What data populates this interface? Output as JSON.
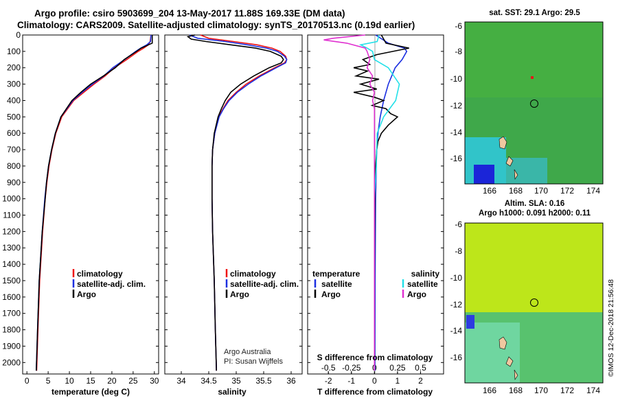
{
  "header": {
    "line1": "Argo profile: csiro 5903699_204 13-May-2017 11.88S 169.33E (DM data)",
    "line2": "Climatology: CARS2009. Satellite-adjusted climatology: synTS_20170513.nc (0.19d earlier)"
  },
  "colors": {
    "climatology": "#ee1111",
    "satellite": "#1a2ee0",
    "argo": "#000000",
    "sat_s": "#22e0e8",
    "argo_s": "#e030d0"
  },
  "legend1": {
    "clim": "climatology",
    "sat": "satellite-adj. clim.",
    "argo": "Argo"
  },
  "legend3": {
    "temp_head": "temperature",
    "sal_head": "salinity",
    "sat": "satellite",
    "argo": "Argo"
  },
  "credits": {
    "line1": "Argo Australia",
    "line2": "PI: Susan Wijffels"
  },
  "maps": {
    "sst_title": "sat. SST: 29.1 Argo: 29.5",
    "sla_title1": "Altim. SLA: 0.16",
    "sla_title2": "Argo h1000: 0.091 h2000: 0.11",
    "lat_ticks": [
      "-6",
      "-8",
      "-10",
      "-12",
      "-14",
      "-16"
    ],
    "lon_ticks": [
      "166",
      "168",
      "170",
      "172",
      "174"
    ]
  },
  "watermark": "©IMOS 12-Dec-2018 21:56:48",
  "chart_data": [
    {
      "type": "line",
      "title": "",
      "xlabel": "temperature (deg C)",
      "ylabel": "",
      "xlim": [
        -1,
        31
      ],
      "ylim": [
        2070,
        0
      ],
      "xticks": [
        "0",
        "5",
        "10",
        "15",
        "20",
        "25",
        "30"
      ],
      "yticks": [
        "0",
        "100",
        "200",
        "300",
        "400",
        "500",
        "600",
        "700",
        "800",
        "900",
        "1000",
        "1100",
        "1200",
        "1300",
        "1400",
        "1500",
        "1600",
        "1700",
        "1800",
        "1900",
        "2000"
      ],
      "series": [
        {
          "name": "climatology",
          "depth": [
            0,
            40,
            60,
            80,
            100,
            150,
            200,
            250,
            300,
            350,
            400,
            450,
            500,
            600,
            700,
            800,
            900,
            1000,
            1200,
            1500,
            1800,
            2050
          ],
          "values": [
            29.2,
            29.0,
            28.6,
            27.5,
            26.2,
            23.5,
            20.6,
            18.4,
            15.8,
            13.4,
            11.0,
            9.6,
            8.2,
            6.8,
            5.9,
            5.2,
            4.7,
            4.3,
            3.7,
            3.0,
            2.6,
            2.3
          ]
        },
        {
          "name": "satellite-adj. clim.",
          "depth": [
            0,
            40,
            60,
            80,
            100,
            150,
            200,
            250,
            300,
            350,
            400,
            450,
            500,
            600,
            700,
            800,
            900,
            1000,
            1200,
            1500,
            1800,
            2050
          ],
          "values": [
            29.2,
            29.1,
            28.2,
            26.8,
            25.6,
            23.0,
            20.2,
            18.1,
            15.4,
            13.0,
            10.8,
            9.4,
            8.0,
            6.7,
            5.8,
            5.1,
            4.6,
            4.2,
            3.6,
            2.9,
            2.5,
            2.2
          ]
        },
        {
          "name": "Argo",
          "depth": [
            0,
            50,
            60,
            80,
            100,
            150,
            200,
            250,
            300,
            350,
            400,
            450,
            500,
            600,
            700,
            800,
            900,
            1000,
            1200,
            1500,
            1800,
            2050
          ],
          "values": [
            29.5,
            29.5,
            28.6,
            26.9,
            25.8,
            22.9,
            20.8,
            18.0,
            15.0,
            12.7,
            10.6,
            9.3,
            8.0,
            6.7,
            5.8,
            5.1,
            4.6,
            4.3,
            3.6,
            2.9,
            2.5,
            2.2
          ]
        }
      ]
    },
    {
      "type": "line",
      "title": "",
      "xlabel": "salinity",
      "ylabel": "",
      "xlim": [
        33.7,
        36.2
      ],
      "ylim": [
        2070,
        0
      ],
      "xticks": [
        "34",
        "34.5",
        "35",
        "35.5",
        "36"
      ],
      "series": [
        {
          "name": "climatology",
          "depth": [
            0,
            20,
            40,
            60,
            80,
            100,
            130,
            150,
            170,
            200,
            250,
            300,
            350,
            400,
            450,
            500,
            600,
            700,
            800,
            1000,
            1200,
            1500,
            1800,
            2050
          ],
          "values": [
            34.35,
            34.5,
            34.95,
            35.38,
            35.65,
            35.8,
            35.9,
            35.92,
            35.88,
            35.7,
            35.42,
            35.18,
            35.0,
            34.85,
            34.76,
            34.68,
            34.61,
            34.57,
            34.56,
            34.56,
            34.57,
            34.6,
            34.62,
            34.64
          ]
        },
        {
          "name": "satellite-adj. clim.",
          "depth": [
            0,
            20,
            40,
            60,
            80,
            100,
            130,
            150,
            170,
            200,
            250,
            300,
            350,
            400,
            450,
            500,
            600,
            700,
            800,
            1000,
            1200,
            1500,
            1800,
            2050
          ],
          "values": [
            34.15,
            34.3,
            34.8,
            35.2,
            35.55,
            35.75,
            35.88,
            35.92,
            35.9,
            35.73,
            35.45,
            35.22,
            35.02,
            34.87,
            34.77,
            34.69,
            34.61,
            34.57,
            34.56,
            34.56,
            34.57,
            34.6,
            34.62,
            34.64
          ]
        },
        {
          "name": "Argo",
          "depth": [
            0,
            10,
            25,
            40,
            60,
            80,
            100,
            130,
            150,
            170,
            200,
            250,
            300,
            350,
            400,
            450,
            500,
            600,
            700,
            800,
            1000,
            1200,
            1500,
            1800,
            2050
          ],
          "values": [
            34.25,
            34.12,
            34.18,
            34.45,
            34.9,
            35.35,
            35.62,
            35.82,
            35.86,
            35.82,
            35.6,
            35.32,
            35.08,
            34.9,
            34.8,
            34.73,
            34.67,
            34.6,
            34.57,
            34.56,
            34.56,
            34.57,
            34.6,
            34.62,
            34.64
          ]
        }
      ]
    },
    {
      "type": "line",
      "title": "",
      "xlabel": "T difference from climatology",
      "x2label": "S difference from climatology",
      "ylabel": "",
      "xlim": [
        -2.9,
        3.0
      ],
      "ylim": [
        2070,
        0
      ],
      "xticks": [
        "-2",
        "-1",
        "0",
        "1",
        "2"
      ],
      "x2ticks": [
        "-0.5",
        "-0.25",
        "0",
        "0.25",
        "0.5"
      ],
      "series": [
        {
          "name": "temperature satellite",
          "axis": "T",
          "depth": [
            0,
            50,
            80,
            100,
            150,
            200,
            300,
            400,
            500,
            600,
            700,
            800,
            1000,
            1500,
            2050
          ],
          "values": [
            0.05,
            0.6,
            1.3,
            1.4,
            1.2,
            0.9,
            0.6,
            0.4,
            0.25,
            0.15,
            0.1,
            0.08,
            0.05,
            0.03,
            0.02
          ]
        },
        {
          "name": "temperature Argo",
          "axis": "T",
          "depth": [
            0,
            50,
            80,
            100,
            120,
            150,
            180,
            200,
            220,
            250,
            270,
            300,
            330,
            350,
            380,
            400,
            430,
            450,
            480,
            500,
            550,
            600,
            650,
            700,
            800,
            1000,
            1500,
            2050
          ],
          "values": [
            0.3,
            0.5,
            1.5,
            0.8,
            0.1,
            -0.5,
            -0.2,
            -0.9,
            -0.3,
            -0.8,
            0.2,
            -0.6,
            0.1,
            -0.9,
            0.0,
            0.4,
            -0.1,
            0.5,
            0.7,
            1.0,
            0.6,
            0.3,
            0.15,
            0.1,
            0.05,
            0.02,
            0.0,
            0.0
          ]
        },
        {
          "name": "salinity satellite",
          "axis": "S",
          "depth": [
            0,
            40,
            60,
            80,
            100,
            150,
            200,
            300,
            400,
            500,
            600,
            800,
            1000,
            1500,
            2050
          ],
          "values": [
            0.05,
            0.03,
            -0.15,
            -0.08,
            -0.02,
            0.0,
            0.15,
            0.27,
            0.23,
            0.1,
            0.03,
            0.02,
            0.0,
            0.0,
            0.0
          ]
        },
        {
          "name": "salinity Argo",
          "axis": "S",
          "depth": [
            0,
            20,
            30,
            50,
            80,
            100,
            150,
            200,
            250,
            300,
            350,
            400,
            450,
            500,
            600,
            800,
            1000,
            1500,
            2050
          ],
          "values": [
            -0.1,
            -0.45,
            -0.55,
            -0.3,
            -0.1,
            -0.08,
            -0.05,
            -0.08,
            -0.02,
            -0.05,
            0.0,
            -0.02,
            0.0,
            0.0,
            0.0,
            0.0,
            0.0,
            0.0,
            0.0
          ]
        }
      ]
    }
  ]
}
